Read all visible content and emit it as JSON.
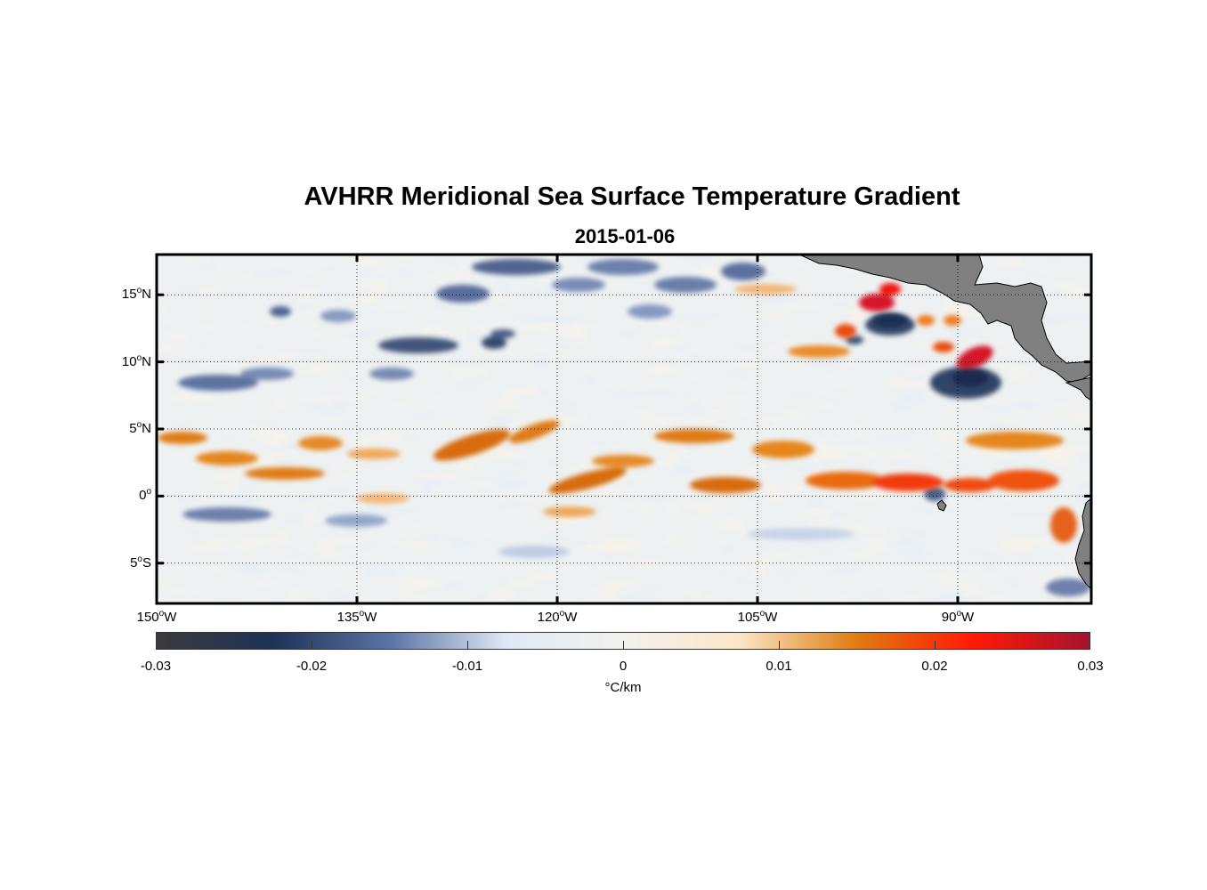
{
  "title": "AVHRR Meridional Sea Surface Temperature Gradient",
  "subtitle": "2015-01-06",
  "map": {
    "lon_range": [
      -150,
      -80
    ],
    "lat_range": [
      -8,
      18
    ],
    "land_color": "#808080",
    "grid": "dotted",
    "lat_ticks": [
      {
        "label_deg": "15",
        "label_hemi": "N",
        "lat": 15
      },
      {
        "label_deg": "10",
        "label_hemi": "N",
        "lat": 10
      },
      {
        "label_deg": "5",
        "label_hemi": "N",
        "lat": 5
      },
      {
        "label_deg": "0",
        "label_hemi": "",
        "lat": 0
      },
      {
        "label_deg": "5",
        "label_hemi": "S",
        "lat": -5
      }
    ],
    "lon_ticks": [
      {
        "label_deg": "150",
        "label_hemi": "W",
        "lon": -150
      },
      {
        "label_deg": "135",
        "label_hemi": "W",
        "lon": -135
      },
      {
        "label_deg": "120",
        "label_hemi": "W",
        "lon": -120
      },
      {
        "label_deg": "105",
        "label_hemi": "W",
        "lon": -105
      },
      {
        "label_deg": "90",
        "label_hemi": "W",
        "lon": -90
      }
    ],
    "features": [
      {
        "name": "equatorial-warm-band",
        "sign": "positive"
      },
      {
        "name": "central-american-coastal-eddies",
        "sign": "mixed"
      },
      {
        "name": "northern-negative-patches",
        "sign": "negative"
      }
    ]
  },
  "colorbar": {
    "min": -0.03,
    "max": 0.03,
    "unit": "°C/km",
    "ticks": [
      "-0.03",
      "-0.02",
      "-0.01",
      "0",
      "0.01",
      "0.02",
      "0.03"
    ],
    "stops": [
      "#3a3a3c",
      "#1e3358",
      "#5b74a6",
      "#dfe9f5",
      "#f2f2ee",
      "#fce6c8",
      "#e07c10",
      "#ff1a06",
      "#a5122e"
    ]
  }
}
